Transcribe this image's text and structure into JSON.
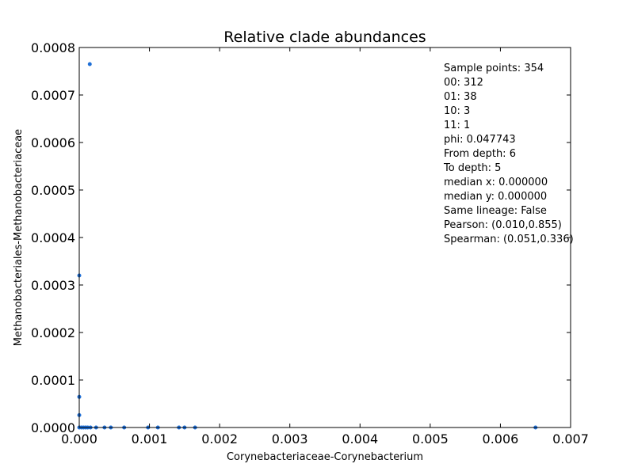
{
  "chart_data": {
    "type": "scatter",
    "title": "Relative clade abundances",
    "xlabel": "Corynebacteriaceae-Corynebacterium",
    "ylabel": "Methanobacteriales-Methanobacteriaceae",
    "xlim": [
      0,
      0.007
    ],
    "ylim": [
      0,
      0.0008
    ],
    "x_ticks": [
      "0.000",
      "0.001",
      "0.002",
      "0.003",
      "0.004",
      "0.005",
      "0.006",
      "0.007"
    ],
    "y_ticks": [
      "0.0000",
      "0.0001",
      "0.0002",
      "0.0003",
      "0.0004",
      "0.0005",
      "0.0006",
      "0.0007",
      "0.0008"
    ],
    "grid": false,
    "marker_color": "#1f6fd6",
    "points": [
      {
        "x": 0.00015,
        "y": 0.000765
      },
      {
        "x": 0.0,
        "y": 0.00032
      },
      {
        "x": 0.0,
        "y": 6.45e-05
      },
      {
        "x": 0.0,
        "y": 2.6e-05
      },
      {
        "x": 0.0,
        "y": 0.0
      },
      {
        "x": 3e-05,
        "y": 0.0
      },
      {
        "x": 6e-05,
        "y": 0.0
      },
      {
        "x": 9e-05,
        "y": 0.0
      },
      {
        "x": 0.00012,
        "y": 0.0
      },
      {
        "x": 0.00016,
        "y": 0.0
      },
      {
        "x": 0.00024,
        "y": 0.0
      },
      {
        "x": 0.00036,
        "y": 0.0
      },
      {
        "x": 0.00045,
        "y": 0.0
      },
      {
        "x": 0.00064,
        "y": 0.0
      },
      {
        "x": 0.00098,
        "y": 0.0
      },
      {
        "x": 0.00112,
        "y": 0.0
      },
      {
        "x": 0.00142,
        "y": 0.0
      },
      {
        "x": 0.0015,
        "y": 0.0
      },
      {
        "x": 0.00165,
        "y": 0.0
      },
      {
        "x": 0.0065,
        "y": 0.0
      }
    ],
    "annotation": [
      "Sample points: 354",
      "00: 312",
      "01: 38",
      "10: 3",
      "11: 1",
      "phi: 0.047743",
      "From depth: 6",
      "To depth: 5",
      "median x: 0.000000",
      "median y: 0.000000",
      "Same lineage: False",
      "Pearson: (0.010,0.855)",
      "Spearman: (0.051,0.336)"
    ]
  }
}
